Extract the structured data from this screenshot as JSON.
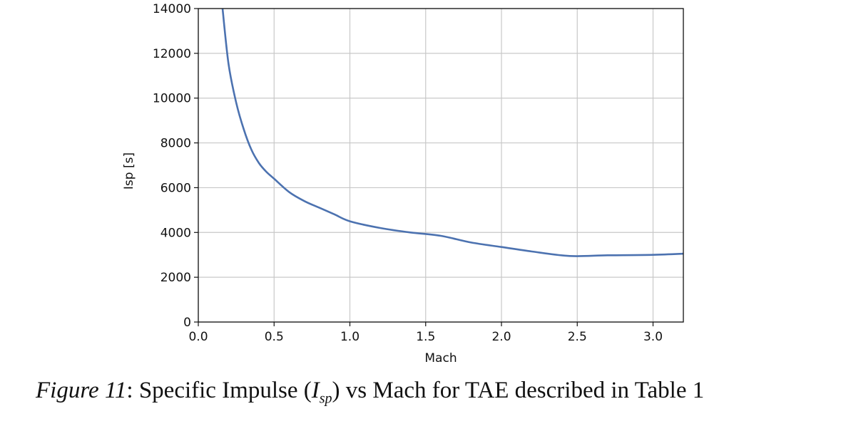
{
  "chart_data": {
    "type": "line",
    "xlabel": "Mach",
    "ylabel": "Isp [s]",
    "xlim": [
      0.0,
      3.2
    ],
    "ylim": [
      0,
      14000
    ],
    "xticks": [
      0.0,
      0.5,
      1.0,
      1.5,
      2.0,
      2.5,
      3.0
    ],
    "xtick_labels": [
      "0.0",
      "0.5",
      "1.0",
      "1.5",
      "2.0",
      "2.5",
      "3.0"
    ],
    "yticks": [
      0,
      2000,
      4000,
      6000,
      8000,
      10000,
      12000,
      14000
    ],
    "ytick_labels": [
      "0",
      "2000",
      "4000",
      "6000",
      "8000",
      "10000",
      "12000",
      "14000"
    ],
    "grid": true,
    "line_color": "#4c72b0",
    "series": [
      {
        "x": [
          0.16,
          0.2,
          0.25,
          0.3,
          0.35,
          0.4,
          0.45,
          0.5,
          0.6,
          0.7,
          0.8,
          0.9,
          1.0,
          1.2,
          1.4,
          1.6,
          1.8,
          2.0,
          2.2,
          2.45,
          2.7,
          3.0,
          3.2
        ],
        "y": [
          14000,
          11500,
          9800,
          8600,
          7700,
          7100,
          6700,
          6400,
          5800,
          5400,
          5100,
          4800,
          4500,
          4200,
          4000,
          3850,
          3550,
          3350,
          3150,
          2950,
          2980,
          3000,
          3050
        ]
      }
    ]
  },
  "caption": {
    "figure": "Figure 11",
    "text_before": ": Specific Impulse (",
    "symbol": "I",
    "symbol_sub": "sp",
    "text_after": ") vs Mach for TAE described in Table 1"
  }
}
